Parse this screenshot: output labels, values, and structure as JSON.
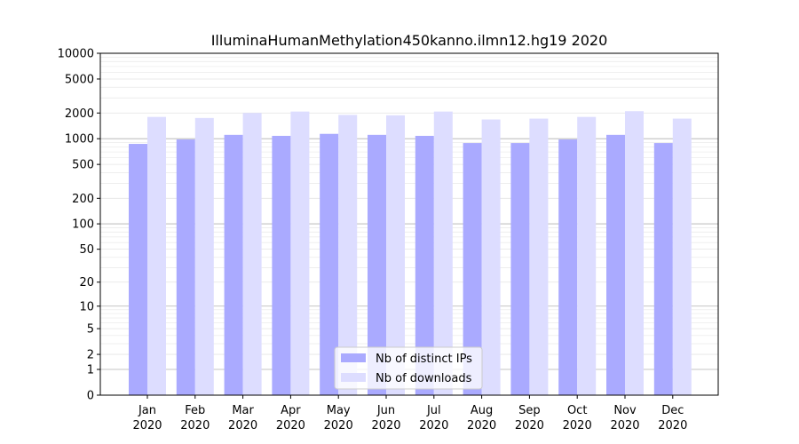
{
  "chart_data": {
    "type": "bar",
    "title": "IlluminaHumanMethylation450kanno.ilmn12.hg19 2020",
    "xlabel": "",
    "ylabel": "",
    "yscale": "log1p",
    "ylim": [
      0,
      10000
    ],
    "yticks": [
      0,
      1,
      2,
      5,
      10,
      20,
      50,
      100,
      200,
      500,
      1000,
      2000,
      5000,
      10000
    ],
    "grid": true,
    "legend_position": "bottom-center",
    "categories": [
      [
        "Jan",
        "2020"
      ],
      [
        "Feb",
        "2020"
      ],
      [
        "Mar",
        "2020"
      ],
      [
        "Apr",
        "2020"
      ],
      [
        "May",
        "2020"
      ],
      [
        "Jun",
        "2020"
      ],
      [
        "Jul",
        "2020"
      ],
      [
        "Aug",
        "2020"
      ],
      [
        "Sep",
        "2020"
      ],
      [
        "Oct",
        "2020"
      ],
      [
        "Nov",
        "2020"
      ],
      [
        "Dec",
        "2020"
      ]
    ],
    "series": [
      {
        "name": "Nb of distinct IPs",
        "color": "#aaaaff",
        "values": [
          870,
          980,
          1110,
          1080,
          1140,
          1110,
          1080,
          890,
          890,
          980,
          1110,
          890
        ]
      },
      {
        "name": "Nb of downloads",
        "color": "#ddddff",
        "values": [
          1800,
          1750,
          2000,
          2080,
          1900,
          1880,
          2080,
          1680,
          1720,
          1800,
          2100,
          1720
        ]
      }
    ]
  }
}
